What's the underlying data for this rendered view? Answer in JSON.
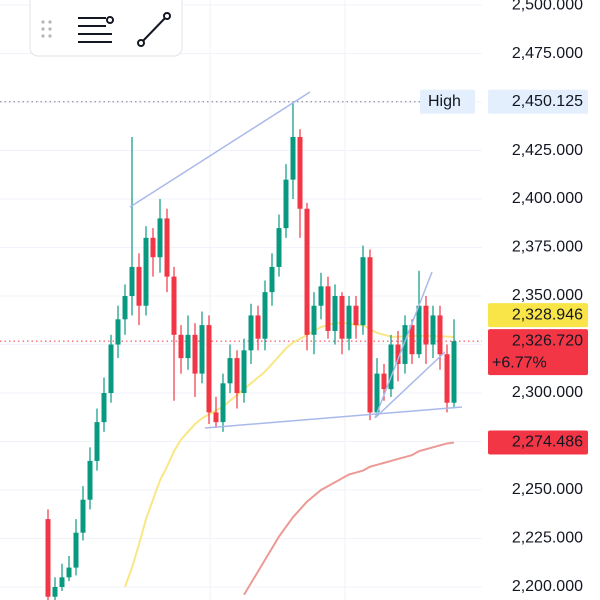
{
  "chart_data": {
    "type": "candlestick",
    "ylim": [
      2193.3,
      2502.6
    ],
    "yticks": [
      {
        "value": 2200,
        "label": "2,200.000"
      },
      {
        "value": 2225,
        "label": "2,225.000"
      },
      {
        "value": 2250,
        "label": "2,250.000"
      },
      {
        "value": 2275,
        "label": "2,275.000"
      },
      {
        "value": 2300,
        "label": "2,300.000"
      },
      {
        "value": 2325,
        "label": "2,325.000"
      },
      {
        "value": 2350,
        "label": "2,350.000"
      },
      {
        "value": 2375,
        "label": "2,375.000"
      },
      {
        "value": 2400,
        "label": "2,400.000"
      },
      {
        "value": 2425,
        "label": "2,425.000"
      },
      {
        "value": 2450,
        "label": "2,450.000"
      },
      {
        "value": 2475,
        "label": "2,475.000"
      },
      {
        "value": 2500,
        "label": "2,500.000"
      }
    ],
    "grid": true,
    "up_color": "#089981",
    "down_color": "#f23645",
    "open": [
      2235,
      2195,
      2200,
      2205,
      2210,
      2228,
      2245,
      2265,
      2285,
      2300,
      2325,
      2338,
      2350,
      2365,
      2345,
      2380,
      2370,
      2390,
      2360,
      2330,
      2318,
      2330,
      2310,
      2335,
      2290,
      2285,
      2305,
      2318,
      2300,
      2322,
      2340,
      2328,
      2352,
      2365,
      2385,
      2410,
      2432,
      2395,
      2330,
      2345,
      2355,
      2332,
      2350,
      2328,
      2345,
      2335,
      2370,
      2290,
      2310,
      2302,
      2325,
      2315,
      2335,
      2320,
      2345,
      2325,
      2340,
      2320,
      2295
    ],
    "high": [
      2240,
      2205,
      2212,
      2216,
      2235,
      2252,
      2272,
      2292,
      2308,
      2330,
      2345,
      2356,
      2432,
      2372,
      2386,
      2385,
      2400,
      2395,
      2365,
      2335,
      2340,
      2336,
      2342,
      2340,
      2298,
      2310,
      2325,
      2322,
      2328,
      2346,
      2345,
      2358,
      2372,
      2392,
      2418,
      2450.125,
      2436,
      2398,
      2352,
      2362,
      2360,
      2356,
      2352,
      2350,
      2350,
      2376,
      2374,
      2318,
      2315,
      2330,
      2332,
      2340,
      2338,
      2363,
      2350,
      2345,
      2345,
      2325,
      2338
    ],
    "low": [
      2185,
      2192,
      2198,
      2203,
      2206,
      2224,
      2240,
      2260,
      2280,
      2295,
      2318,
      2330,
      2340,
      2335,
      2340,
      2360,
      2362,
      2352,
      2296,
      2310,
      2312,
      2298,
      2305,
      2284,
      2282,
      2280,
      2300,
      2292,
      2295,
      2315,
      2322,
      2322,
      2345,
      2360,
      2380,
      2400,
      2380,
      2322,
      2320,
      2338,
      2328,
      2325,
      2320,
      2322,
      2328,
      2330,
      2286,
      2288,
      2296,
      2298,
      2306,
      2310,
      2315,
      2318,
      2315,
      2318,
      2312,
      2290,
      2292
    ],
    "close": [
      2195,
      2200,
      2205,
      2210,
      2228,
      2245,
      2265,
      2285,
      2300,
      2325,
      2338,
      2350,
      2365,
      2345,
      2380,
      2370,
      2390,
      2360,
      2330,
      2318,
      2330,
      2310,
      2335,
      2290,
      2285,
      2305,
      2318,
      2300,
      2322,
      2340,
      2328,
      2352,
      2365,
      2385,
      2410,
      2432,
      2395,
      2330,
      2345,
      2355,
      2332,
      2350,
      2328,
      2345,
      2335,
      2370,
      2290,
      2310,
      2302,
      2325,
      2315,
      2335,
      2320,
      2345,
      2325,
      2340,
      2320,
      2295,
      2326.72
    ],
    "moving_averages": [
      {
        "color": "#f9e784",
        "values": [
          null,
          null,
          null,
          null,
          null,
          null,
          null,
          null,
          null,
          null,
          null,
          2200,
          2210,
          2222,
          2235,
          2245,
          2255,
          2262,
          2270,
          2276,
          2280,
          2284,
          2287,
          2289,
          2291,
          2293,
          2296,
          2299,
          2302,
          2305,
          2308,
          2311,
          2315,
          2319,
          2323,
          2326,
          2328,
          2330,
          2332,
          2334,
          2335,
          2336,
          2336,
          2336,
          2335,
          2335,
          2333,
          2331,
          2330,
          2329,
          2329,
          2329.2,
          2329.4,
          2329.5,
          2329.4,
          2329.3,
          2329.2,
          2329.1,
          2328.946
        ]
      },
      {
        "color": "#ec9a96",
        "values": [
          null,
          null,
          null,
          null,
          null,
          null,
          null,
          null,
          null,
          null,
          null,
          null,
          null,
          null,
          null,
          null,
          null,
          null,
          null,
          null,
          null,
          null,
          null,
          null,
          null,
          null,
          null,
          null,
          2196,
          2202,
          2208,
          2214,
          2220,
          2226,
          2231,
          2236,
          2240,
          2244,
          2247,
          2250,
          2252,
          2254,
          2256,
          2258,
          2259,
          2260,
          2262,
          2263,
          2264,
          2265,
          2266,
          2267,
          2268,
          2270,
          2271,
          2272,
          2273,
          2274,
          2274.486
        ]
      }
    ],
    "price_markers": [
      {
        "name": "High",
        "value": 2450.125,
        "label": "2,450.125",
        "color": "#e3effd"
      },
      {
        "value": 2328.946,
        "label": "2,328.946",
        "color": "#f9e547"
      },
      {
        "value": 2326.72,
        "label": "2,326.720",
        "change": "+6.77%",
        "color": "#f23645"
      },
      {
        "value": 2274.486,
        "label": "2,274.486",
        "color": "#f23645"
      }
    ]
  }
}
